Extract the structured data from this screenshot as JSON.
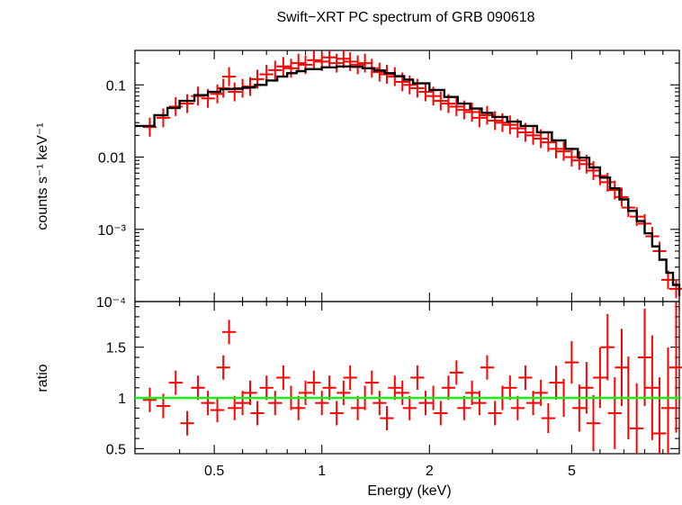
{
  "chart_data": [
    {
      "type": "scatter",
      "title": "Swift−XRT PC spectrum of GRB 090618",
      "ylabel": "counts s⁻¹ keV⁻¹",
      "xlabel": "",
      "x_scale": "log",
      "y_scale": "log",
      "xlim": [
        0.3,
        10.0
      ],
      "ylim": [
        0.0001,
        0.3
      ],
      "y_ticks": [
        {
          "value": 0.1,
          "label": "0.1"
        },
        {
          "value": 0.01,
          "label": "0.01"
        },
        {
          "value": 0.001,
          "label": "10⁻³"
        },
        {
          "value": 0.0001,
          "label": "10⁻⁴"
        }
      ],
      "series": [
        {
          "role": "data",
          "color": "#ff0000",
          "x": [
            0.33,
            0.36,
            0.39,
            0.42,
            0.45,
            0.48,
            0.51,
            0.53,
            0.55,
            0.57,
            0.6,
            0.63,
            0.66,
            0.7,
            0.74,
            0.78,
            0.82,
            0.86,
            0.9,
            0.95,
            1.0,
            1.05,
            1.1,
            1.15,
            1.2,
            1.26,
            1.32,
            1.38,
            1.45,
            1.52,
            1.6,
            1.68,
            1.76,
            1.85,
            1.95,
            2.05,
            2.15,
            2.26,
            2.38,
            2.5,
            2.63,
            2.76,
            2.9,
            3.05,
            3.2,
            3.36,
            3.53,
            3.71,
            3.9,
            4.1,
            4.3,
            4.52,
            4.75,
            5.0,
            5.25,
            5.5,
            5.75,
            6.0,
            6.3,
            6.6,
            6.9,
            7.2,
            7.6,
            8.0,
            8.4,
            8.8,
            9.3,
            9.8
          ],
          "y": [
            0.026,
            0.035,
            0.05,
            0.055,
            0.07,
            0.065,
            0.075,
            0.09,
            0.13,
            0.08,
            0.09,
            0.095,
            0.12,
            0.14,
            0.16,
            0.18,
            0.17,
            0.2,
            0.19,
            0.22,
            0.21,
            0.24,
            0.2,
            0.23,
            0.21,
            0.19,
            0.2,
            0.17,
            0.15,
            0.14,
            0.13,
            0.11,
            0.1,
            0.09,
            0.08,
            0.07,
            0.06,
            0.055,
            0.05,
            0.045,
            0.042,
            0.035,
            0.038,
            0.032,
            0.03,
            0.028,
            0.025,
            0.022,
            0.02,
            0.018,
            0.016,
            0.013,
            0.012,
            0.01,
            0.009,
            0.008,
            0.0065,
            0.0055,
            0.0045,
            0.0035,
            0.0028,
            0.002,
            0.0015,
            0.0012,
            0.0008,
            0.0005,
            0.0002,
            0.00015
          ]
        },
        {
          "role": "model",
          "color": "#000000",
          "x": [
            0.3,
            0.34,
            0.37,
            0.4,
            0.44,
            0.48,
            0.52,
            0.56,
            0.6,
            0.65,
            0.7,
            0.75,
            0.8,
            0.85,
            0.9,
            1.0,
            1.1,
            1.2,
            1.3,
            1.4,
            1.5,
            1.6,
            1.7,
            1.8,
            2.0,
            2.2,
            2.4,
            2.6,
            2.8,
            3.0,
            3.3,
            3.6,
            4.0,
            4.4,
            4.8,
            5.2,
            5.6,
            6.0,
            6.4,
            6.8,
            7.2,
            7.6,
            8.0,
            8.4,
            8.8,
            9.2,
            9.6,
            10.0
          ],
          "y": [
            0.027,
            0.038,
            0.048,
            0.06,
            0.072,
            0.08,
            0.087,
            0.088,
            0.092,
            0.1,
            0.115,
            0.13,
            0.145,
            0.155,
            0.165,
            0.175,
            0.18,
            0.178,
            0.17,
            0.158,
            0.145,
            0.132,
            0.118,
            0.105,
            0.085,
            0.068,
            0.055,
            0.047,
            0.041,
            0.036,
            0.031,
            0.027,
            0.022,
            0.017,
            0.013,
            0.0098,
            0.0072,
            0.0052,
            0.0037,
            0.0026,
            0.0018,
            0.0013,
            0.00088,
            0.00058,
            0.00038,
            0.00025,
            0.00017,
            0.00012
          ]
        }
      ]
    },
    {
      "type": "scatter",
      "title": "",
      "ylabel": "ratio",
      "xlabel": "Energy (keV)",
      "x_scale": "log",
      "y_scale": "linear",
      "xlim": [
        0.3,
        10.0
      ],
      "ylim": [
        0.45,
        1.95
      ],
      "x_ticks": [
        {
          "value": 0.5,
          "label": "0.5"
        },
        {
          "value": 1,
          "label": "1"
        },
        {
          "value": 2,
          "label": "2"
        },
        {
          "value": 5,
          "label": "5"
        }
      ],
      "y_ticks": [
        {
          "value": 0.5,
          "label": "0.5"
        },
        {
          "value": 1,
          "label": "1"
        },
        {
          "value": 1.5,
          "label": "1.5"
        }
      ],
      "reference_line": {
        "value": 1.0,
        "color": "#00ff00"
      },
      "series": [
        {
          "role": "ratio",
          "color": "#ff0000",
          "x": [
            0.33,
            0.36,
            0.39,
            0.42,
            0.45,
            0.48,
            0.51,
            0.53,
            0.55,
            0.57,
            0.6,
            0.63,
            0.66,
            0.7,
            0.74,
            0.78,
            0.82,
            0.86,
            0.9,
            0.95,
            1.0,
            1.05,
            1.1,
            1.15,
            1.2,
            1.26,
            1.32,
            1.38,
            1.45,
            1.52,
            1.6,
            1.68,
            1.76,
            1.85,
            1.95,
            2.05,
            2.15,
            2.26,
            2.38,
            2.5,
            2.63,
            2.76,
            2.9,
            3.05,
            3.2,
            3.36,
            3.53,
            3.71,
            3.9,
            4.1,
            4.3,
            4.52,
            4.75,
            5.0,
            5.25,
            5.5,
            5.75,
            6.0,
            6.3,
            6.6,
            6.9,
            7.2,
            7.6,
            8.0,
            8.4,
            8.8,
            9.3,
            9.8
          ],
          "y": [
            0.98,
            0.92,
            1.15,
            0.75,
            1.1,
            0.95,
            0.88,
            1.3,
            1.65,
            0.9,
            0.95,
            1.05,
            0.85,
            1.1,
            0.95,
            1.2,
            1.0,
            0.9,
            1.05,
            1.15,
            0.95,
            1.1,
            0.85,
            1.05,
            1.2,
            0.9,
            1.0,
            1.15,
            0.95,
            0.8,
            1.1,
            1.05,
            0.9,
            1.2,
            0.95,
            1.0,
            0.85,
            1.1,
            1.25,
            0.9,
            1.05,
            0.95,
            1.3,
            0.85,
            1.0,
            1.1,
            0.9,
            1.2,
            0.95,
            1.05,
            0.8,
            1.15,
            1.0,
            1.35,
            0.9,
            1.1,
            0.75,
            1.2,
            1.5,
            0.85,
            1.3,
            1.0,
            0.7,
            1.4,
            1.1,
            0.65,
            0.9,
            1.3
          ]
        }
      ]
    }
  ]
}
